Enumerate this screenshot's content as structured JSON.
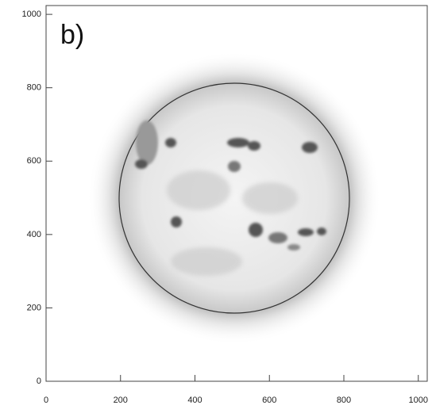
{
  "chart_data": {
    "type": "image",
    "annotation": "b)",
    "xlim": [
      0,
      1024
    ],
    "ylim": [
      0,
      1024
    ],
    "xticks": [
      0,
      200,
      400,
      600,
      800,
      1000
    ],
    "yticks": [
      0,
      200,
      400,
      600,
      800,
      1000
    ]
  }
}
